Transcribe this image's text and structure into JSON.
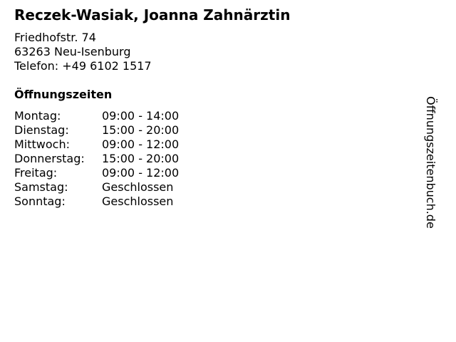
{
  "business": {
    "title": "Reczek-Wasiak, Joanna Zahnärztin",
    "street": "Friedhofstr. 74",
    "city": "63263 Neu-Isenburg",
    "phone": "Telefon: +49 6102 1517"
  },
  "hours": {
    "heading": "Öffnungszeiten",
    "rows": [
      {
        "day": "Montag:",
        "time": "09:00 - 14:00"
      },
      {
        "day": "Dienstag:",
        "time": "15:00 - 20:00"
      },
      {
        "day": "Mittwoch:",
        "time": "09:00 - 12:00"
      },
      {
        "day": "Donnerstag:",
        "time": "15:00 - 20:00"
      },
      {
        "day": "Freitag:",
        "time": "09:00 - 12:00"
      },
      {
        "day": "Samstag:",
        "time": "Geschlossen"
      },
      {
        "day": "Sonntag:",
        "time": "Geschlossen"
      }
    ]
  },
  "watermark": "Öffnungszeitenbuch.de"
}
